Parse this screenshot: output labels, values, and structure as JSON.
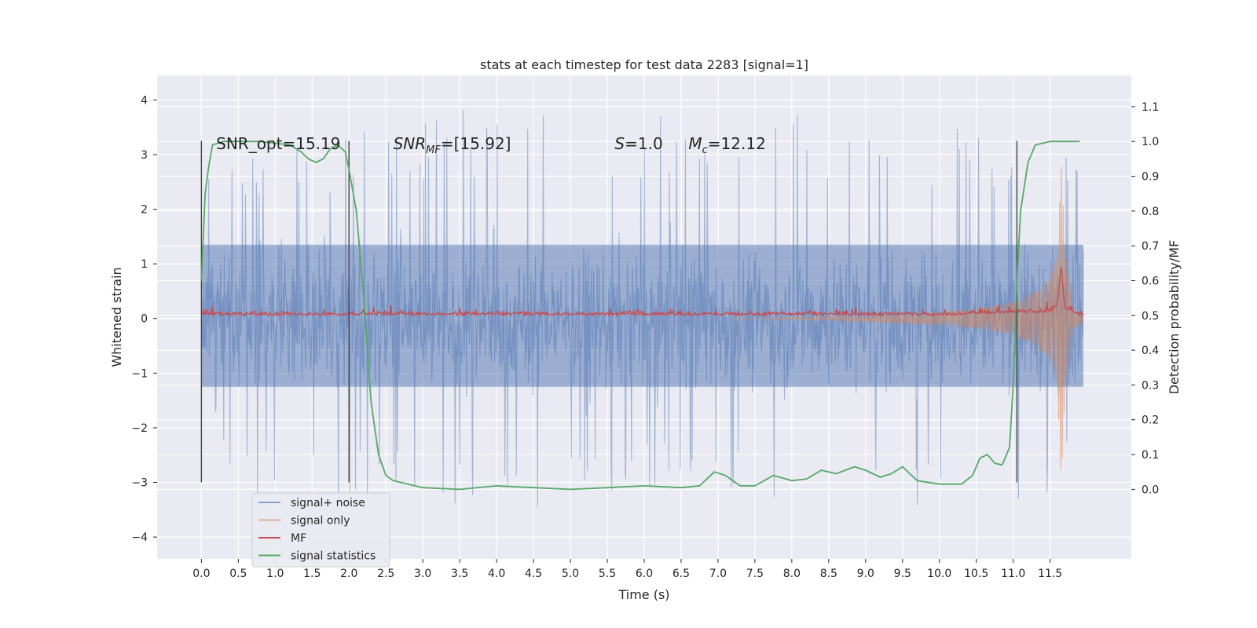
{
  "chart_data": {
    "type": "line",
    "title": "stats at each timestep for test data 2283 [signal=1]",
    "xlabel": "Time (s)",
    "ylabel": "Whitened strain",
    "y2label": "Detection probability/MF",
    "xlim": [
      -0.6,
      12.6
    ],
    "ylim": [
      -4.4,
      4.45
    ],
    "y2lim": [
      -0.2,
      1.19
    ],
    "xticks": [
      "0.0",
      "0.5",
      "1.0",
      "1.5",
      "2.0",
      "2.5",
      "3.0",
      "3.5",
      "4.0",
      "4.5",
      "5.0",
      "5.5",
      "6.0",
      "6.5",
      "7.0",
      "7.5",
      "8.0",
      "8.5",
      "9.0",
      "9.5",
      "10.0",
      "10.5",
      "11.0",
      "11.5"
    ],
    "yticks": [
      "4",
      "3",
      "2",
      "1",
      "0",
      "−1",
      "−2",
      "−3",
      "−4"
    ],
    "y2ticks": [
      "1.1",
      "1.0",
      "0.9",
      "0.8",
      "0.7",
      "0.6",
      "0.5",
      "0.4",
      "0.3",
      "0.2",
      "0.1",
      "0.0"
    ],
    "grid": true,
    "legend_position": "lower-left",
    "colors": {
      "plot_bg": "#eaeaf2",
      "signal_noise": "#4c72b0",
      "signal_only": "#dd8452",
      "mf": "#c44e52",
      "signal_statistics": "#55a868",
      "window_lines": "#444444"
    },
    "annotations": [
      {
        "text": "SNR_opt=15.19",
        "x": 0.2,
        "y": 3.2
      },
      {
        "text": "SNR_MF=[15.92]",
        "x": 2.6,
        "y": 3.2
      },
      {
        "text": "S=1.0",
        "x": 5.6,
        "y": 3.2
      },
      {
        "text": "M_c=12.12",
        "x": 6.6,
        "y": 3.2
      }
    ],
    "window_markers_x": [
      0.0,
      2.0,
      11.05
    ],
    "series": [
      {
        "name": "signal+ noise",
        "description_range": "dense noise approximately between -3.7 and 4.1",
        "envelope_upper": [
          [
            0,
            2.3
          ],
          [
            0.5,
            2.3
          ],
          [
            1,
            2.4
          ],
          [
            1.5,
            2.5
          ],
          [
            2,
            2.6
          ],
          [
            2.5,
            2.8
          ],
          [
            3,
            2.7
          ],
          [
            3.5,
            2.9
          ],
          [
            4,
            2.7
          ],
          [
            4.5,
            2.8
          ],
          [
            5,
            2.8
          ],
          [
            5.5,
            2.7
          ],
          [
            6,
            2.8
          ],
          [
            6.5,
            2.8
          ],
          [
            7,
            2.8
          ],
          [
            7.5,
            2.7
          ],
          [
            8,
            2.8
          ],
          [
            8.5,
            2.7
          ],
          [
            9,
            2.8
          ],
          [
            9.5,
            2.7
          ],
          [
            10,
            2.6
          ],
          [
            10.5,
            2.6
          ],
          [
            11,
            2.7
          ],
          [
            11.5,
            2.9
          ],
          [
            11.65,
            3.4
          ],
          [
            11.8,
            2.2
          ],
          [
            11.9,
            2.0
          ]
        ],
        "envelope_lower": [
          [
            0,
            -2.4
          ],
          [
            0.5,
            -2.5
          ],
          [
            1,
            -2.3
          ],
          [
            1.5,
            -2.5
          ],
          [
            2,
            -2.6
          ],
          [
            2.5,
            -2.7
          ],
          [
            3,
            -2.5
          ],
          [
            3.5,
            -2.6
          ],
          [
            4,
            -2.5
          ],
          [
            4.5,
            -2.6
          ],
          [
            5,
            -2.6
          ],
          [
            5.5,
            -2.5
          ],
          [
            6,
            -2.5
          ],
          [
            6.5,
            -2.5
          ],
          [
            7,
            -2.6
          ],
          [
            7.5,
            -2.5
          ],
          [
            8,
            -2.6
          ],
          [
            8.5,
            -2.7
          ],
          [
            9,
            -2.6
          ],
          [
            9.5,
            -2.5
          ],
          [
            10,
            -2.7
          ],
          [
            10.5,
            -2.7
          ],
          [
            11,
            -2.7
          ],
          [
            11.5,
            -2.8
          ],
          [
            11.7,
            -2.4
          ],
          [
            11.9,
            -2.1
          ]
        ]
      },
      {
        "name": "signal only",
        "envelope": [
          [
            7.5,
            0.0
          ],
          [
            8,
            0.02
          ],
          [
            9,
            0.05
          ],
          [
            10,
            0.12
          ],
          [
            10.5,
            0.18
          ],
          [
            11,
            0.3
          ],
          [
            11.3,
            0.5
          ],
          [
            11.5,
            0.75
          ],
          [
            11.6,
            1.2
          ],
          [
            11.65,
            3.1
          ],
          [
            11.7,
            1.4
          ],
          [
            11.8,
            0.2
          ],
          [
            11.9,
            0.1
          ]
        ]
      },
      {
        "name": "MF",
        "baseline": 0.5,
        "points": [
          [
            0,
            0.5
          ],
          [
            2,
            0.5
          ],
          [
            4,
            0.5
          ],
          [
            6,
            0.5
          ],
          [
            8,
            0.5
          ],
          [
            10,
            0.5
          ],
          [
            11.5,
            0.51
          ],
          [
            11.6,
            0.53
          ],
          [
            11.65,
            0.64
          ],
          [
            11.7,
            0.52
          ],
          [
            11.9,
            0.5
          ]
        ]
      },
      {
        "name": "signal statistics",
        "points": [
          [
            0.0,
            0.6
          ],
          [
            0.05,
            0.85
          ],
          [
            0.1,
            0.93
          ],
          [
            0.15,
            0.99
          ],
          [
            0.3,
            1.0
          ],
          [
            0.8,
            1.0
          ],
          [
            1.2,
            0.99
          ],
          [
            1.35,
            0.97
          ],
          [
            1.45,
            0.95
          ],
          [
            1.55,
            0.94
          ],
          [
            1.65,
            0.95
          ],
          [
            1.75,
            0.98
          ],
          [
            1.85,
            0.99
          ],
          [
            1.95,
            0.97
          ],
          [
            2.0,
            0.92
          ],
          [
            2.1,
            0.8
          ],
          [
            2.2,
            0.55
          ],
          [
            2.3,
            0.25
          ],
          [
            2.4,
            0.1
          ],
          [
            2.5,
            0.04
          ],
          [
            2.6,
            0.025
          ],
          [
            2.8,
            0.015
          ],
          [
            3.0,
            0.005
          ],
          [
            3.5,
            0.0
          ],
          [
            4.0,
            0.01
          ],
          [
            4.5,
            0.005
          ],
          [
            5.0,
            0.0
          ],
          [
            5.5,
            0.005
          ],
          [
            6.0,
            0.01
          ],
          [
            6.5,
            0.005
          ],
          [
            6.75,
            0.01
          ],
          [
            6.95,
            0.05
          ],
          [
            7.1,
            0.04
          ],
          [
            7.3,
            0.01
          ],
          [
            7.5,
            0.01
          ],
          [
            7.75,
            0.04
          ],
          [
            8.0,
            0.025
          ],
          [
            8.2,
            0.03
          ],
          [
            8.4,
            0.055
          ],
          [
            8.6,
            0.045
          ],
          [
            8.85,
            0.065
          ],
          [
            9.0,
            0.055
          ],
          [
            9.2,
            0.035
          ],
          [
            9.35,
            0.045
          ],
          [
            9.5,
            0.065
          ],
          [
            9.7,
            0.025
          ],
          [
            10.0,
            0.015
          ],
          [
            10.3,
            0.015
          ],
          [
            10.45,
            0.04
          ],
          [
            10.55,
            0.09
          ],
          [
            10.65,
            0.1
          ],
          [
            10.75,
            0.075
          ],
          [
            10.85,
            0.07
          ],
          [
            10.95,
            0.12
          ],
          [
            11.0,
            0.3
          ],
          [
            11.05,
            0.6
          ],
          [
            11.1,
            0.8
          ],
          [
            11.2,
            0.94
          ],
          [
            11.3,
            0.99
          ],
          [
            11.5,
            1.0
          ],
          [
            11.9,
            1.0
          ]
        ]
      }
    ]
  }
}
